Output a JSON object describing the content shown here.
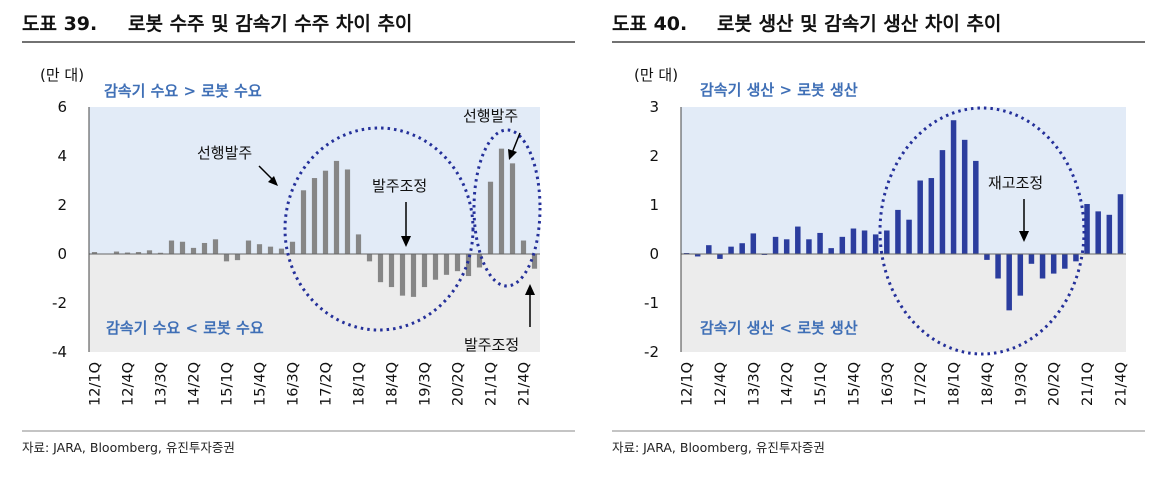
{
  "colors": {
    "positive_band": "#e2ebf7",
    "negative_band": "#ececec",
    "bar_left": "#868686",
    "bar_right": "#2b3d9e",
    "zone_text": "#3f6fb6",
    "ellipse": "#24309a"
  },
  "chart_data": [
    {
      "type": "bar",
      "figure_label": "도표 39.",
      "title": "로봇 수주 및 감속기 수주 차이 추이",
      "unit": "(만 대)",
      "ylim": [
        -4,
        6
      ],
      "yticks": [
        "6",
        "4",
        "2",
        "0",
        "-2",
        "-4"
      ],
      "quarters_start": "2012-Q1",
      "values": [
        0.08,
        0.02,
        0.1,
        0.06,
        0.08,
        0.15,
        0.05,
        0.55,
        0.5,
        0.25,
        0.45,
        0.6,
        -0.3,
        -0.25,
        0.55,
        0.4,
        0.3,
        0.22,
        0.5,
        2.6,
        3.1,
        3.4,
        3.8,
        3.45,
        0.8,
        -0.3,
        -1.15,
        -1.35,
        -1.7,
        -1.75,
        -1.35,
        -1.05,
        -0.85,
        -0.7,
        -0.9,
        -0.55,
        2.95,
        4.3,
        3.7,
        0.55,
        -0.6
      ],
      "xtick_labels": [
        "12/1Q",
        "12/4Q",
        "13/3Q",
        "14/2Q",
        "15/1Q",
        "15/4Q",
        "16/3Q",
        "17/2Q",
        "18/1Q",
        "18/4Q",
        "19/3Q",
        "20/2Q",
        "21/1Q",
        "21/4Q"
      ],
      "zone_top": "감속기 수요 > 로봇 수요",
      "zone_bottom": "감속기 수요 < 로봇 수요",
      "annotations": [
        "선행발주",
        "발주조정",
        "선행발주",
        "발주조정"
      ],
      "source": "자료: JARA, Bloomberg, 유진투자증권"
    },
    {
      "type": "bar",
      "figure_label": "도표 40.",
      "title": "로봇 생산 및 감속기 생산 차이 추이",
      "unit": "(만 대)",
      "ylim": [
        -2,
        3
      ],
      "yticks": [
        "3",
        "2",
        "1",
        "0",
        "-1",
        "-2"
      ],
      "quarters_start": "2012-Q1",
      "values": [
        0.02,
        -0.05,
        0.18,
        -0.1,
        0.15,
        0.22,
        0.42,
        -0.02,
        0.35,
        0.3,
        0.56,
        0.3,
        0.43,
        0.12,
        0.35,
        0.52,
        0.48,
        0.4,
        0.48,
        0.9,
        0.7,
        1.5,
        1.55,
        2.12,
        2.73,
        2.33,
        1.9,
        -0.12,
        -0.5,
        -1.15,
        -0.85,
        -0.2,
        -0.5,
        -0.4,
        -0.3,
        -0.15,
        1.02,
        0.87,
        0.8,
        1.22
      ],
      "xtick_labels": [
        "12/1Q",
        "12/4Q",
        "13/3Q",
        "14/2Q",
        "15/1Q",
        "15/4Q",
        "16/3Q",
        "17/2Q",
        "18/1Q",
        "18/4Q",
        "19/3Q",
        "20/2Q",
        "21/1Q",
        "21/4Q"
      ],
      "zone_top": "감속기 생산 > 로봇 생산",
      "zone_bottom": "감속기 생산 < 로봇 생산",
      "annotations": [
        "재고조정"
      ],
      "source": "자료: JARA, Bloomberg, 유진투자증권"
    }
  ]
}
